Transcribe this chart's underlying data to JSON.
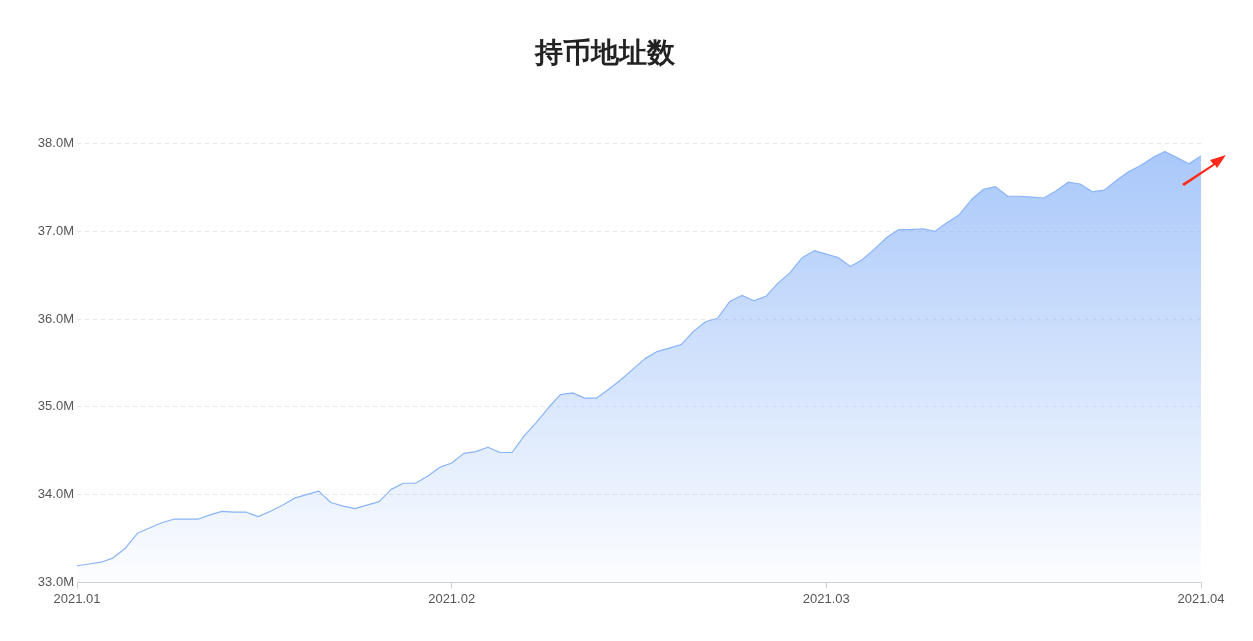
{
  "chart_data": {
    "type": "area",
    "title": "持币地址数",
    "categories": [
      "2021.01",
      null,
      null,
      null,
      null,
      null,
      null,
      null,
      null,
      null,
      null,
      null,
      null,
      null,
      null,
      null,
      null,
      null,
      null,
      null,
      null,
      null,
      null,
      null,
      null,
      null,
      null,
      null,
      null,
      null,
      null,
      "2021.02",
      null,
      null,
      null,
      null,
      null,
      null,
      null,
      null,
      null,
      null,
      null,
      null,
      null,
      null,
      null,
      null,
      null,
      null,
      null,
      null,
      null,
      null,
      null,
      null,
      null,
      null,
      null,
      null,
      null,
      null,
      "2021.03",
      null,
      null,
      null,
      null,
      null,
      null,
      null,
      null,
      null,
      null,
      null,
      null,
      null,
      null,
      null,
      null,
      null,
      null,
      null,
      null,
      null,
      null,
      null,
      null,
      null,
      null,
      null,
      null,
      null,
      null,
      "2021.04"
    ],
    "series": [
      {
        "color": "#8ab4f8",
        "values": [
          33.19,
          33.21,
          33.23,
          33.28,
          33.39,
          33.56,
          33.62,
          33.68,
          33.72,
          33.72,
          33.72,
          33.77,
          33.81,
          33.8,
          33.8,
          33.75,
          33.81,
          33.88,
          33.96,
          34.0,
          34.04,
          33.91,
          33.87,
          33.84,
          33.88,
          33.92,
          34.06,
          34.13,
          34.13,
          34.21,
          34.31,
          34.36,
          34.47,
          34.49,
          34.54,
          34.48,
          34.48,
          34.67,
          34.82,
          34.99,
          35.14,
          35.16,
          35.1,
          35.1,
          35.2,
          35.31,
          35.43,
          35.55,
          35.63,
          35.67,
          35.71,
          35.86,
          35.97,
          36.01,
          36.2,
          36.27,
          36.21,
          36.26,
          36.41,
          36.53,
          36.7,
          36.78,
          36.74,
          36.7,
          36.6,
          36.68,
          36.8,
          36.93,
          37.02,
          37.02,
          37.03,
          37.0,
          37.1,
          37.19,
          37.36,
          37.48,
          37.51,
          37.4,
          37.4,
          37.39,
          37.38,
          37.46,
          37.56,
          37.54,
          37.45,
          37.47,
          37.58,
          37.68,
          37.75,
          37.84,
          37.91,
          37.84,
          37.77,
          37.86
        ]
      }
    ],
    "ylim": [
      33,
      38
    ],
    "yticks": [
      {
        "value": 33,
        "label": "33.0M"
      },
      {
        "value": 34,
        "label": "34.0M"
      },
      {
        "value": 35,
        "label": "35.0M"
      },
      {
        "value": 36,
        "label": "36.0M"
      },
      {
        "value": 37,
        "label": "37.0M"
      },
      {
        "value": 38,
        "label": "38.0M"
      }
    ],
    "grid": "y",
    "marker": "none",
    "legend": false
  }
}
